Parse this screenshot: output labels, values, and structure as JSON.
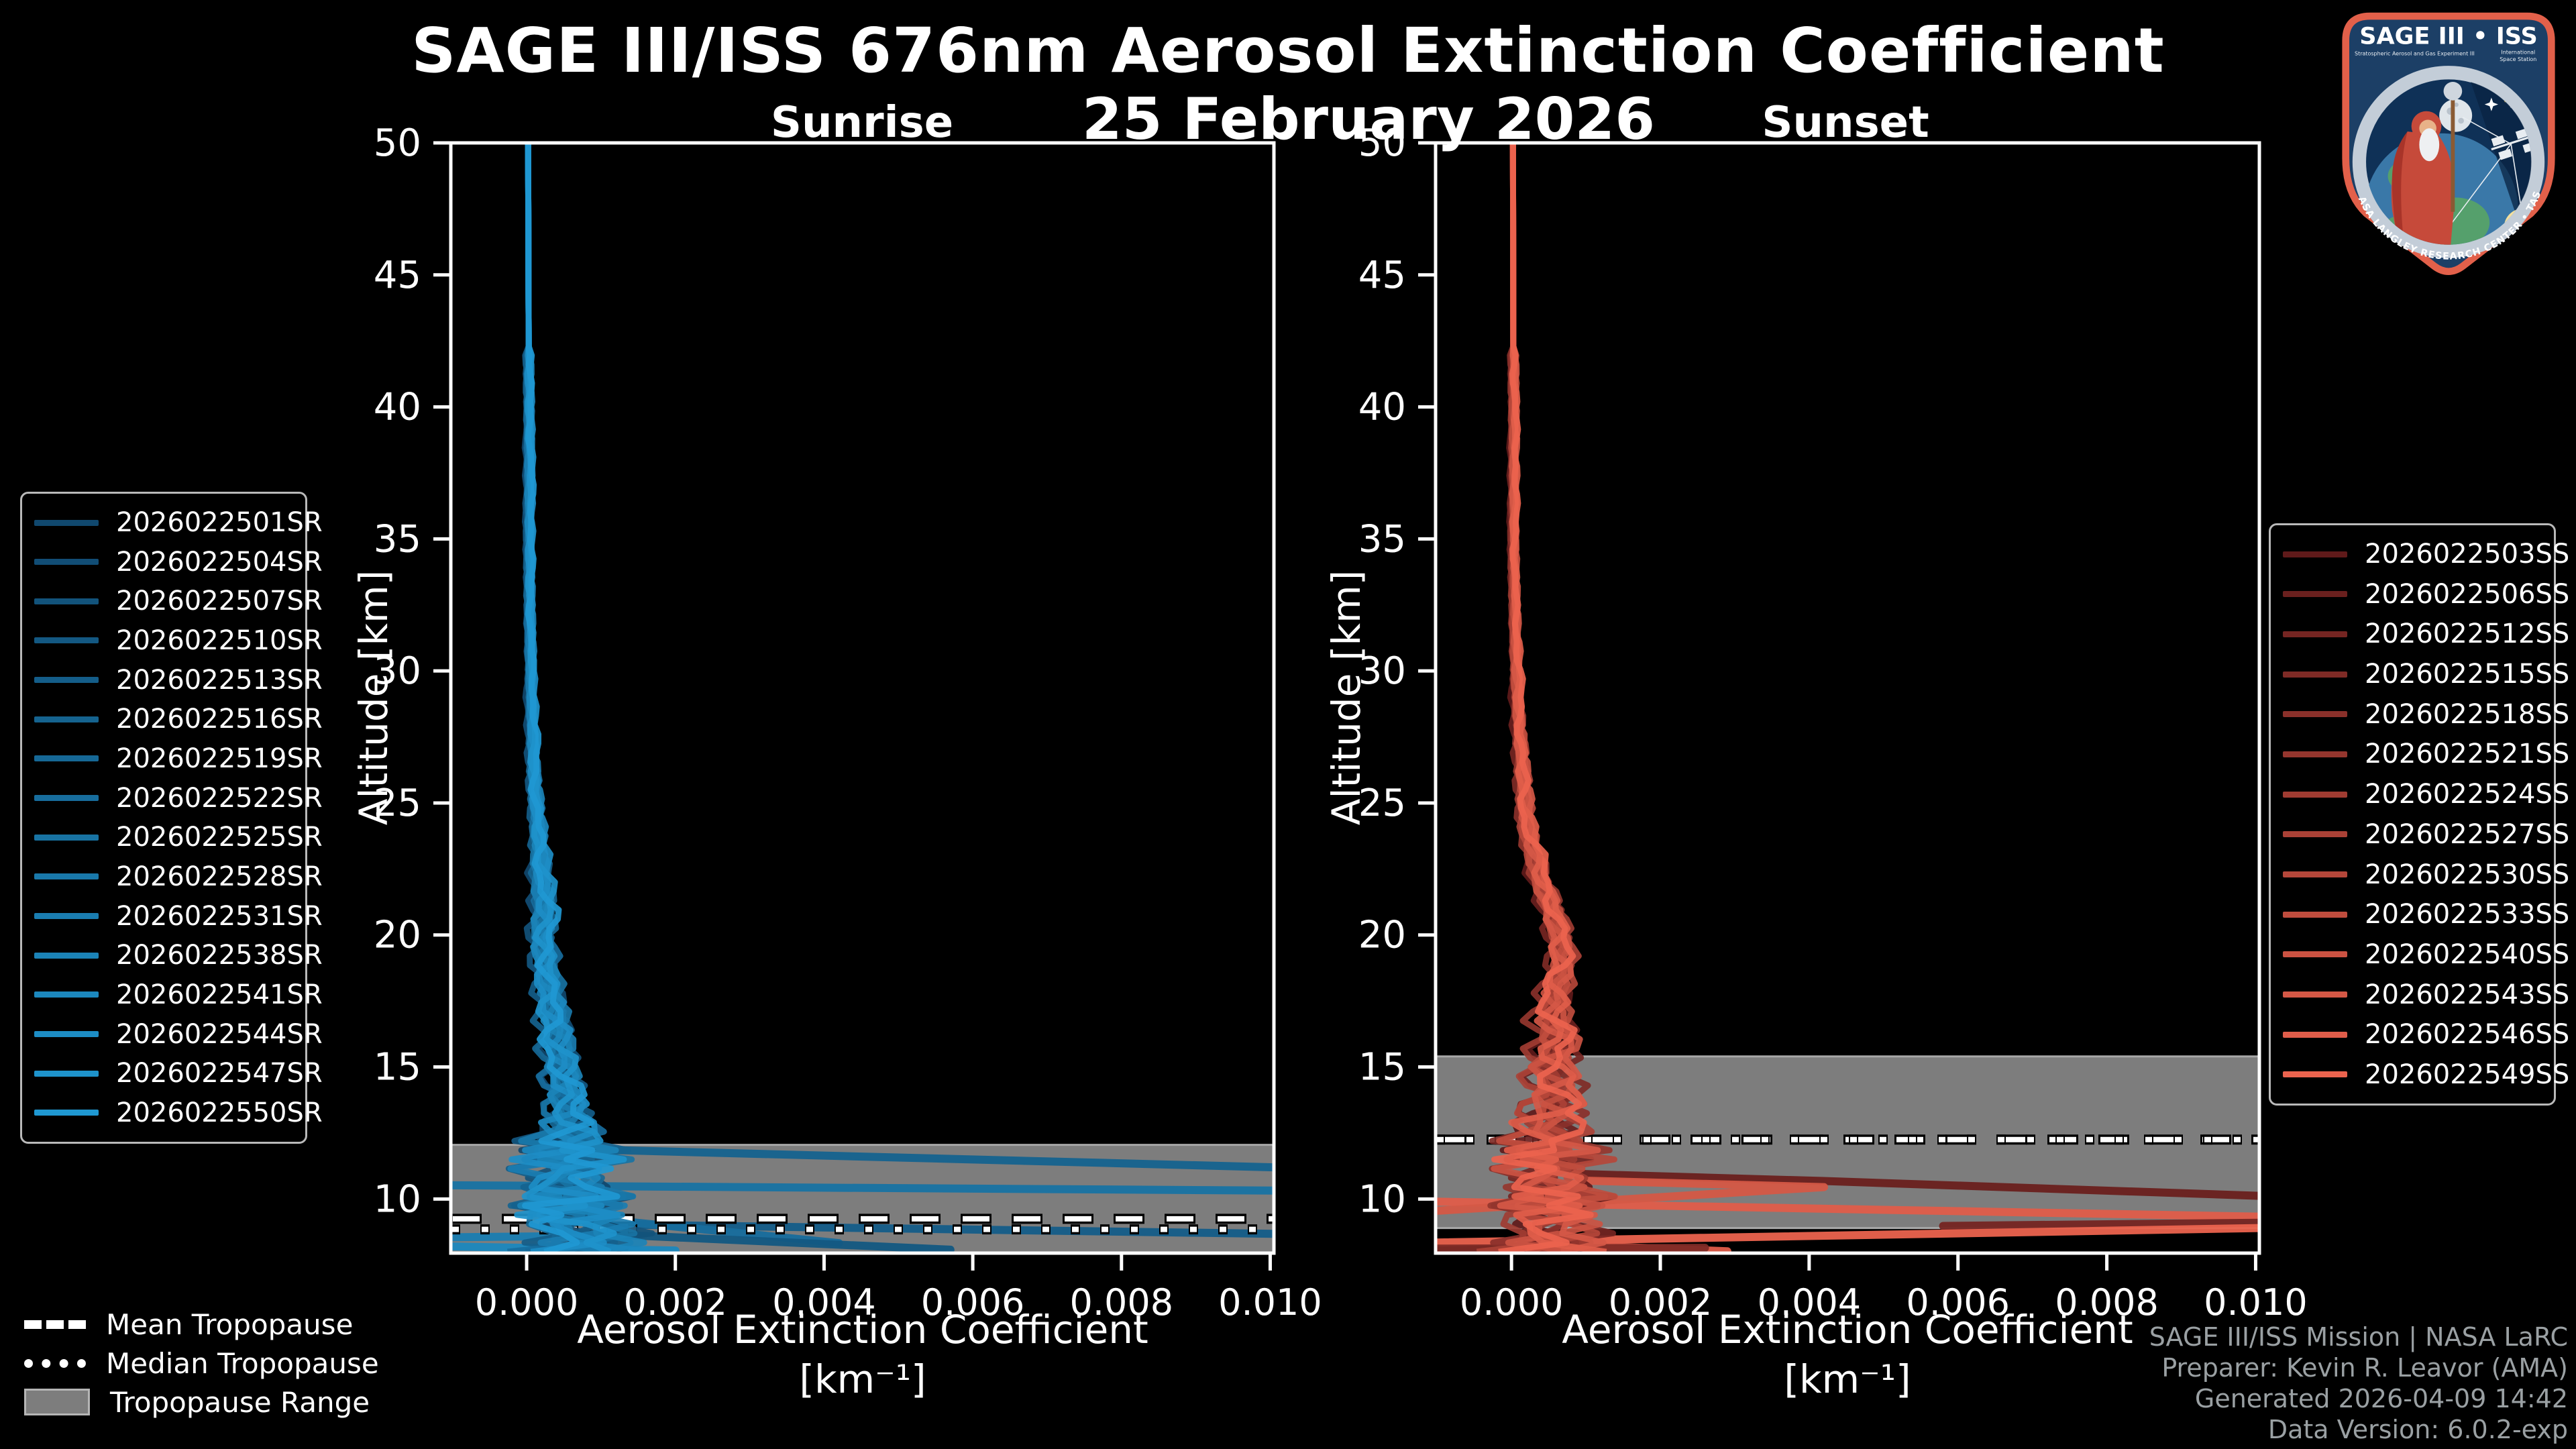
{
  "header": {
    "title": "SAGE III/ISS 676nm Aerosol Extinction Coefficient",
    "date": "25 February 2026"
  },
  "panels": [
    {
      "title": "Sunrise",
      "xlabel": "Aerosol Extinction Coefficient",
      "xunit": "[km⁻¹]",
      "ylabel": "Altitude [km]"
    },
    {
      "title": "Sunset",
      "xlabel": "Aerosol Extinction Coefficient",
      "xunit": "[km⁻¹]",
      "ylabel": "Altitude [km]"
    }
  ],
  "chart_data": [
    {
      "type": "line",
      "title": "Sunrise",
      "xlabel": "Aerosol Extinction Coefficient [km^-1]",
      "ylabel": "Altitude [km]",
      "xlim": [
        -0.00102,
        0.01005
      ],
      "ylim": [
        7.95,
        50
      ],
      "xticks": [
        {
          "v": 0.0,
          "label": "0.000"
        },
        {
          "v": 0.002,
          "label": "0.002"
        },
        {
          "v": 0.004,
          "label": "0.004"
        },
        {
          "v": 0.006,
          "label": "0.006"
        },
        {
          "v": 0.008,
          "label": "0.008"
        },
        {
          "v": 0.01,
          "label": "0.010"
        }
      ],
      "yticks": [
        50,
        45,
        40,
        35,
        30,
        25,
        20,
        15,
        10
      ],
      "legend_position": "left",
      "grid": false,
      "series": [
        {
          "id": "2026022501SR",
          "color": "#10486e"
        },
        {
          "id": "2026022504SR",
          "color": "#114d75"
        },
        {
          "id": "2026022507SR",
          "color": "#12537b"
        },
        {
          "id": "2026022510SR",
          "color": "#135882"
        },
        {
          "id": "2026022513SR",
          "color": "#145d89"
        },
        {
          "id": "2026022516SR",
          "color": "#15638f"
        },
        {
          "id": "2026022519SR",
          "color": "#166896"
        },
        {
          "id": "2026022522SR",
          "color": "#176d9d"
        },
        {
          "id": "2026022525SR",
          "color": "#1873a3"
        },
        {
          "id": "2026022528SR",
          "color": "#1978aa"
        },
        {
          "id": "2026022531SR",
          "color": "#1a7db1"
        },
        {
          "id": "2026022538SR",
          "color": "#1b83b7"
        },
        {
          "id": "2026022541SR",
          "color": "#1c88be"
        },
        {
          "id": "2026022544SR",
          "color": "#1d8dc5"
        },
        {
          "id": "2026022547SR",
          "color": "#1e93cb"
        },
        {
          "id": "2026022550SR",
          "color": "#1f98d2"
        }
      ],
      "base_profile": [
        [
          50,
          2e-05
        ],
        [
          40,
          3e-05
        ],
        [
          32,
          4e-05
        ],
        [
          30,
          5e-05
        ],
        [
          28,
          7e-05
        ],
        [
          26,
          0.0001
        ],
        [
          24,
          0.00015
        ],
        [
          22,
          0.0002
        ],
        [
          21,
          0.00024
        ],
        [
          20,
          0.00021
        ],
        [
          19,
          0.00026
        ],
        [
          18,
          0.0003
        ],
        [
          17,
          0.00035
        ],
        [
          16,
          0.0004
        ],
        [
          15,
          0.00044
        ],
        [
          14,
          0.0005
        ],
        [
          13,
          0.00056
        ],
        [
          12,
          0.0006
        ],
        [
          11,
          0.00052
        ],
        [
          10,
          0.0006
        ],
        [
          9,
          0.0007
        ],
        [
          8.5,
          0.00078
        ],
        [
          8,
          0.0008
        ]
      ],
      "spread_profile": [
        [
          50,
          3e-05
        ],
        [
          30,
          4e-05
        ],
        [
          28,
          5e-05
        ],
        [
          24,
          0.0001
        ],
        [
          22,
          0.00015
        ],
        [
          20,
          0.00018
        ],
        [
          18,
          0.0002
        ],
        [
          16,
          0.00025
        ],
        [
          14,
          0.0003
        ],
        [
          13,
          0.00035
        ],
        [
          12,
          0.0005
        ],
        [
          11,
          0.00055
        ],
        [
          10,
          0.0006
        ],
        [
          9,
          0.00065
        ],
        [
          8,
          0.0006
        ]
      ],
      "outlier_segments": [
        {
          "color_index": 5,
          "points": [
            [
              0.0005,
              11.9
            ],
            [
              0.01005,
              11.2
            ]
          ]
        },
        {
          "color_index": 8,
          "points": [
            [
              -0.00102,
              10.52
            ],
            [
              0.01005,
              10.32
            ]
          ]
        },
        {
          "color_index": 4,
          "points": [
            [
              0.0008,
              9.05
            ],
            [
              0.01005,
              8.68
            ]
          ]
        },
        {
          "color_index": 7,
          "points": [
            [
              0.0006,
              9.35
            ],
            [
              0.0042,
              8.33
            ]
          ]
        },
        {
          "color_index": 10,
          "points": [
            [
              -0.00102,
              8.55
            ],
            [
              0.0015,
              8.62
            ]
          ]
        },
        {
          "color_index": 3,
          "points": [
            [
              0.0004,
              8.75
            ],
            [
              0.0057,
              8.08
            ]
          ]
        },
        {
          "color_index": 12,
          "points": [
            [
              -0.00102,
              8.2
            ],
            [
              0.002,
              8.05
            ]
          ]
        }
      ],
      "tropopause": {
        "mean": 9.25,
        "median": 8.85,
        "range": [
          7.95,
          12.05
        ]
      }
    },
    {
      "type": "line",
      "title": "Sunset",
      "xlabel": "Aerosol Extinction Coefficient [km^-1]",
      "ylabel": "Altitude [km]",
      "xlim": [
        -0.00102,
        0.01005
      ],
      "ylim": [
        7.95,
        50
      ],
      "xticks": [
        {
          "v": 0.0,
          "label": "0.000"
        },
        {
          "v": 0.002,
          "label": "0.002"
        },
        {
          "v": 0.004,
          "label": "0.004"
        },
        {
          "v": 0.006,
          "label": "0.006"
        },
        {
          "v": 0.008,
          "label": "0.008"
        },
        {
          "v": 0.01,
          "label": "0.010"
        }
      ],
      "yticks": [
        50,
        45,
        40,
        35,
        30,
        25,
        20,
        15,
        10
      ],
      "legend_position": "right",
      "grid": false,
      "series": [
        {
          "id": "2026022503SS",
          "color": "#5f1a1a"
        },
        {
          "id": "2026022506SS",
          "color": "#6a201e"
        },
        {
          "id": "2026022512SS",
          "color": "#752522"
        },
        {
          "id": "2026022515SS",
          "color": "#7f2b26"
        },
        {
          "id": "2026022518SS",
          "color": "#8a302a"
        },
        {
          "id": "2026022521SS",
          "color": "#95362e"
        },
        {
          "id": "2026022524SS",
          "color": "#a03c32"
        },
        {
          "id": "2026022527SS",
          "color": "#aa4136"
        },
        {
          "id": "2026022530SS",
          "color": "#b5473a"
        },
        {
          "id": "2026022533SS",
          "color": "#c04d3e"
        },
        {
          "id": "2026022540SS",
          "color": "#cb5242"
        },
        {
          "id": "2026022543SS",
          "color": "#d55846"
        },
        {
          "id": "2026022546SS",
          "color": "#e05d4a"
        },
        {
          "id": "2026022549SS",
          "color": "#eb634e"
        }
      ],
      "base_profile": [
        [
          50,
          2e-05
        ],
        [
          34,
          3e-05
        ],
        [
          32,
          4e-05
        ],
        [
          30,
          6e-05
        ],
        [
          28,
          0.0001
        ],
        [
          26,
          0.00015
        ],
        [
          24,
          0.0002
        ],
        [
          22,
          0.0004
        ],
        [
          21,
          0.00055
        ],
        [
          20,
          0.00065
        ],
        [
          19,
          0.0007
        ],
        [
          18,
          0.0006
        ],
        [
          17,
          0.0005
        ],
        [
          16,
          0.0006
        ],
        [
          15,
          0.0005
        ],
        [
          14,
          0.0006
        ],
        [
          13,
          0.0005
        ],
        [
          12,
          0.00055
        ],
        [
          11,
          0.0005
        ],
        [
          10,
          0.00055
        ],
        [
          9,
          0.0005
        ],
        [
          8,
          0.0005
        ]
      ],
      "spread_profile": [
        [
          50,
          3e-05
        ],
        [
          32,
          4e-05
        ],
        [
          28,
          7e-05
        ],
        [
          26,
          0.0001
        ],
        [
          24,
          0.00012
        ],
        [
          22,
          0.00015
        ],
        [
          20,
          0.00018
        ],
        [
          18,
          0.00022
        ],
        [
          17,
          0.0003
        ],
        [
          16,
          0.00035
        ],
        [
          15,
          0.0004
        ],
        [
          14,
          0.00045
        ],
        [
          13,
          0.0005
        ],
        [
          12,
          0.0005
        ],
        [
          11,
          0.00055
        ],
        [
          10,
          0.0006
        ],
        [
          9,
          0.0006
        ],
        [
          8,
          0.00055
        ]
      ],
      "outlier_segments": [
        {
          "color_index": 1,
          "points": [
            [
              0.0009,
              10.95
            ],
            [
              0.0042,
              10.68
            ],
            [
              0.01005,
              10.12
            ]
          ]
        },
        {
          "color_index": 12,
          "points": [
            [
              -0.00102,
              9.9
            ],
            [
              0.01005,
              9.33
            ]
          ]
        },
        {
          "color_index": 11,
          "points": [
            [
              0.0009,
              10.7
            ],
            [
              0.0042,
              10.45
            ],
            [
              -0.00102,
              9.55
            ]
          ]
        },
        {
          "color_index": 2,
          "points": [
            [
              0.0058,
              8.98
            ],
            [
              0.01005,
              9.1
            ]
          ]
        },
        {
          "color_index": 13,
          "points": [
            [
              -0.00102,
              8.35
            ],
            [
              0.01005,
              8.9
            ]
          ]
        },
        {
          "color_index": 12,
          "points": [
            [
              0.0004,
              8.3
            ],
            [
              0.0029,
              8.02
            ]
          ]
        },
        {
          "color_index": 3,
          "points": [
            [
              -0.00102,
              8.12
            ],
            [
              0.0026,
              8.15
            ]
          ]
        }
      ],
      "tropopause": {
        "mean": 12.25,
        "median": 12.25,
        "range": [
          8.9,
          15.4
        ]
      }
    }
  ],
  "tropopause_legend": {
    "items": [
      "Mean Tropopause",
      "Median Tropopause",
      "Tropopause Range"
    ]
  },
  "footer": {
    "lines": [
      "SAGE III/ISS Mission | NASA LaRC",
      "Preparer: Kevin R. Leavor (AMA)",
      "Generated 2026-04-09 14:42",
      "Data Version: 6.0.2-exp"
    ]
  },
  "logo": {
    "title": "SAGE III • ISS",
    "subtitle_left": "Stratospheric Aerosol and Gas Experiment III",
    "subtitle_right_1": "International",
    "subtitle_right_2": "Space Station",
    "ring_text": "BALL • NASA LANGLEY RESEARCH CENTER • TAS-I • ESA"
  },
  "style": {
    "background": "#000000",
    "frame_color": "#ffffff",
    "band_color": "#7d7d7d",
    "band_edge_color": "#a8a8a8",
    "footer_color": "#9aa0a3",
    "logo_border": "#e2604a",
    "logo_navy": "#1c3f66"
  }
}
